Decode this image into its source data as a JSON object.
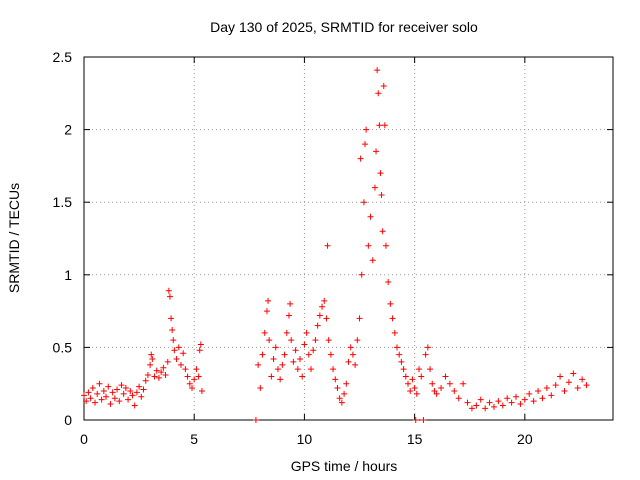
{
  "chart_data": {
    "type": "scatter",
    "title": "Day 130 of 2025, SRMTID for receiver solo",
    "xlabel": "GPS time / hours",
    "ylabel": "SRMTID / TECUs",
    "xlim": [
      0,
      24
    ],
    "ylim": [
      0,
      2.5
    ],
    "xticks": [
      0,
      5,
      10,
      15,
      20
    ],
    "xtick_labels": [
      "0",
      "5",
      "10",
      "15",
      "20"
    ],
    "yticks": [
      0,
      0.5,
      1,
      1.5,
      2,
      2.5
    ],
    "ytick_labels": [
      "0",
      "0.5",
      "1",
      "1.5",
      "2",
      "2.5"
    ],
    "grid": true,
    "marker": "+",
    "series": [
      {
        "name": "SRMTID",
        "color": "#ff0000",
        "points": [
          [
            0.0,
            0.17
          ],
          [
            0.1,
            0.13
          ],
          [
            0.2,
            0.19
          ],
          [
            0.3,
            0.15
          ],
          [
            0.4,
            0.22
          ],
          [
            0.5,
            0.12
          ],
          [
            0.6,
            0.18
          ],
          [
            0.7,
            0.25
          ],
          [
            0.8,
            0.14
          ],
          [
            0.9,
            0.2
          ],
          [
            1.0,
            0.16
          ],
          [
            1.1,
            0.23
          ],
          [
            1.2,
            0.11
          ],
          [
            1.3,
            0.19
          ],
          [
            1.4,
            0.15
          ],
          [
            1.5,
            0.21
          ],
          [
            1.6,
            0.13
          ],
          [
            1.7,
            0.24
          ],
          [
            1.8,
            0.18
          ],
          [
            1.9,
            0.22
          ],
          [
            2.0,
            0.14
          ],
          [
            2.1,
            0.2
          ],
          [
            2.2,
            0.17
          ],
          [
            2.3,
            0.1
          ],
          [
            2.4,
            0.19
          ],
          [
            2.5,
            0.23
          ],
          [
            2.6,
            0.16
          ],
          [
            2.7,
            0.21
          ],
          [
            2.8,
            0.27
          ],
          [
            2.9,
            0.31
          ],
          [
            3.0,
            0.38
          ],
          [
            3.05,
            0.45
          ],
          [
            3.1,
            0.42
          ],
          [
            3.2,
            0.3
          ],
          [
            3.3,
            0.34
          ],
          [
            3.4,
            0.29
          ],
          [
            3.5,
            0.33
          ],
          [
            3.6,
            0.36
          ],
          [
            3.7,
            0.31
          ],
          [
            3.8,
            0.4
          ],
          [
            3.85,
            0.89
          ],
          [
            3.9,
            0.85
          ],
          [
            3.95,
            0.7
          ],
          [
            4.0,
            0.62
          ],
          [
            4.05,
            0.55
          ],
          [
            4.1,
            0.48
          ],
          [
            4.2,
            0.42
          ],
          [
            4.3,
            0.5
          ],
          [
            4.4,
            0.38
          ],
          [
            4.5,
            0.46
          ],
          [
            4.6,
            0.35
          ],
          [
            4.7,
            0.3
          ],
          [
            4.8,
            0.25
          ],
          [
            4.9,
            0.22
          ],
          [
            5.0,
            0.28
          ],
          [
            5.1,
            0.35
          ],
          [
            5.2,
            0.3
          ],
          [
            5.25,
            0.48
          ],
          [
            5.3,
            0.52
          ],
          [
            5.35,
            0.2
          ],
          [
            7.8,
            0.0
          ],
          [
            7.9,
            0.38
          ],
          [
            8.0,
            0.22
          ],
          [
            8.1,
            0.45
          ],
          [
            8.2,
            0.6
          ],
          [
            8.3,
            0.75
          ],
          [
            8.35,
            0.82
          ],
          [
            8.4,
            0.55
          ],
          [
            8.5,
            0.3
          ],
          [
            8.6,
            0.42
          ],
          [
            8.7,
            0.5
          ],
          [
            8.8,
            0.35
          ],
          [
            8.9,
            0.28
          ],
          [
            9.0,
            0.38
          ],
          [
            9.1,
            0.45
          ],
          [
            9.2,
            0.6
          ],
          [
            9.3,
            0.72
          ],
          [
            9.35,
            0.8
          ],
          [
            9.4,
            0.55
          ],
          [
            9.5,
            0.4
          ],
          [
            9.6,
            0.48
          ],
          [
            9.7,
            0.35
          ],
          [
            9.8,
            0.42
          ],
          [
            9.9,
            0.3
          ],
          [
            10.0,
            0.52
          ],
          [
            10.1,
            0.6
          ],
          [
            10.2,
            0.45
          ],
          [
            10.3,
            0.35
          ],
          [
            10.4,
            0.48
          ],
          [
            10.5,
            0.55
          ],
          [
            10.6,
            0.65
          ],
          [
            10.7,
            0.72
          ],
          [
            10.8,
            0.78
          ],
          [
            10.9,
            0.82
          ],
          [
            11.0,
            0.7
          ],
          [
            11.05,
            1.2
          ],
          [
            11.1,
            0.55
          ],
          [
            11.2,
            0.45
          ],
          [
            11.3,
            0.35
          ],
          [
            11.4,
            0.28
          ],
          [
            11.5,
            0.22
          ],
          [
            11.6,
            0.15
          ],
          [
            11.7,
            0.12
          ],
          [
            11.8,
            0.18
          ],
          [
            11.9,
            0.25
          ],
          [
            12.0,
            0.4
          ],
          [
            12.1,
            0.5
          ],
          [
            12.2,
            0.45
          ],
          [
            12.3,
            0.38
          ],
          [
            12.4,
            0.55
          ],
          [
            12.5,
            0.7
          ],
          [
            12.55,
            1.8
          ],
          [
            12.6,
            1.0
          ],
          [
            12.7,
            1.5
          ],
          [
            12.75,
            1.9
          ],
          [
            12.8,
            2.0
          ],
          [
            12.9,
            1.2
          ],
          [
            13.0,
            1.4
          ],
          [
            13.1,
            1.1
          ],
          [
            13.2,
            1.6
          ],
          [
            13.25,
            1.85
          ],
          [
            13.3,
            2.41
          ],
          [
            13.35,
            2.25
          ],
          [
            13.4,
            2.03
          ],
          [
            13.45,
            1.7
          ],
          [
            13.5,
            1.55
          ],
          [
            13.55,
            1.3
          ],
          [
            13.6,
            2.3
          ],
          [
            13.65,
            2.03
          ],
          [
            13.7,
            1.2
          ],
          [
            13.8,
            0.95
          ],
          [
            13.9,
            0.8
          ],
          [
            14.0,
            0.7
          ],
          [
            14.1,
            0.6
          ],
          [
            14.2,
            0.5
          ],
          [
            14.3,
            0.45
          ],
          [
            14.4,
            0.4
          ],
          [
            14.5,
            0.35
          ],
          [
            14.6,
            0.3
          ],
          [
            14.7,
            0.25
          ],
          [
            14.8,
            0.2
          ],
          [
            14.9,
            0.28
          ],
          [
            15.0,
            0.22
          ],
          [
            15.05,
            0.0
          ],
          [
            15.1,
            0.18
          ],
          [
            15.2,
            0.35
          ],
          [
            15.3,
            0.3
          ],
          [
            15.4,
            0.0
          ],
          [
            15.5,
            0.45
          ],
          [
            15.6,
            0.5
          ],
          [
            15.7,
            0.35
          ],
          [
            15.8,
            0.25
          ],
          [
            15.9,
            0.2
          ],
          [
            16.0,
            0.18
          ],
          [
            16.2,
            0.22
          ],
          [
            16.4,
            0.3
          ],
          [
            16.6,
            0.25
          ],
          [
            16.8,
            0.2
          ],
          [
            17.0,
            0.15
          ],
          [
            17.2,
            0.25
          ],
          [
            17.4,
            0.12
          ],
          [
            17.6,
            0.08
          ],
          [
            17.8,
            0.1
          ],
          [
            18.0,
            0.14
          ],
          [
            18.2,
            0.08
          ],
          [
            18.4,
            0.12
          ],
          [
            18.6,
            0.09
          ],
          [
            18.8,
            0.13
          ],
          [
            19.0,
            0.1
          ],
          [
            19.2,
            0.15
          ],
          [
            19.4,
            0.12
          ],
          [
            19.6,
            0.16
          ],
          [
            19.8,
            0.11
          ],
          [
            20.0,
            0.14
          ],
          [
            20.2,
            0.18
          ],
          [
            20.4,
            0.13
          ],
          [
            20.6,
            0.2
          ],
          [
            20.8,
            0.15
          ],
          [
            21.0,
            0.22
          ],
          [
            21.2,
            0.17
          ],
          [
            21.4,
            0.24
          ],
          [
            21.6,
            0.3
          ],
          [
            21.8,
            0.2
          ],
          [
            22.0,
            0.26
          ],
          [
            22.2,
            0.32
          ],
          [
            22.4,
            0.22
          ],
          [
            22.6,
            0.28
          ],
          [
            22.8,
            0.24
          ]
        ]
      }
    ]
  }
}
